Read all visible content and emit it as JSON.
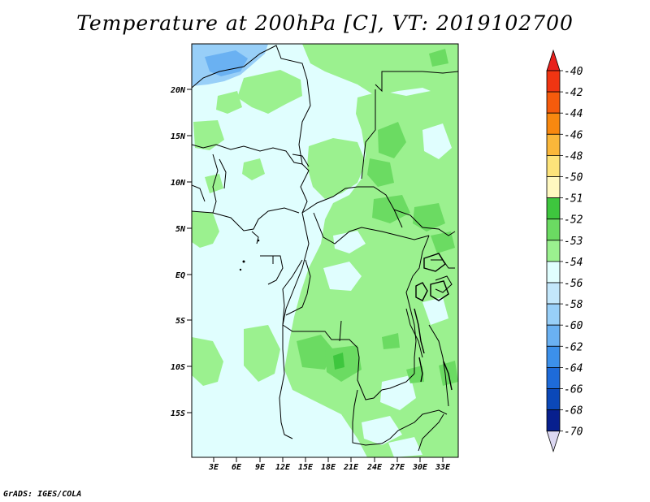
{
  "title": "Temperature at 200hPa [C], VT: 2019102700",
  "credit": "GrADS: IGES/COLA",
  "lat_labels": [
    "20N",
    "15N",
    "10N",
    "5N",
    "EQ",
    "5S",
    "10S",
    "15S"
  ],
  "lon_labels": [
    "3E",
    "6E",
    "9E",
    "12E",
    "15E",
    "18E",
    "21E",
    "24E",
    "27E",
    "30E",
    "33E"
  ],
  "colorbar": {
    "labels": [
      "-40",
      "-42",
      "-44",
      "-46",
      "-48",
      "-50",
      "-51",
      "-52",
      "-53",
      "-54",
      "-56",
      "-58",
      "-60",
      "-62",
      "-64",
      "-66",
      "-68",
      "-70"
    ],
    "colors": {
      "top_arrow": "#e8201c",
      "bins": [
        "#f03512",
        "#f55b0c",
        "#f8880f",
        "#fab73a",
        "#fde37a",
        "#fff8c0",
        "#3ec63e",
        "#6bdb62",
        "#9bf18f",
        "#e0fefe",
        "#c3e7fb",
        "#98cff8",
        "#6ab1f2",
        "#3c90ea",
        "#1e6bd9",
        "#0b48b8",
        "#071f8e"
      ],
      "bottom_arrow": "#dcd8f2"
    }
  },
  "field_colors": {
    "cold_blue": "#6ab1f2",
    "light_blue": "#98cff8",
    "pale_cyan": "#e0fefe",
    "light_green": "#9bf18f",
    "mid_green": "#6bdb62",
    "dark_green": "#3ec63e"
  }
}
